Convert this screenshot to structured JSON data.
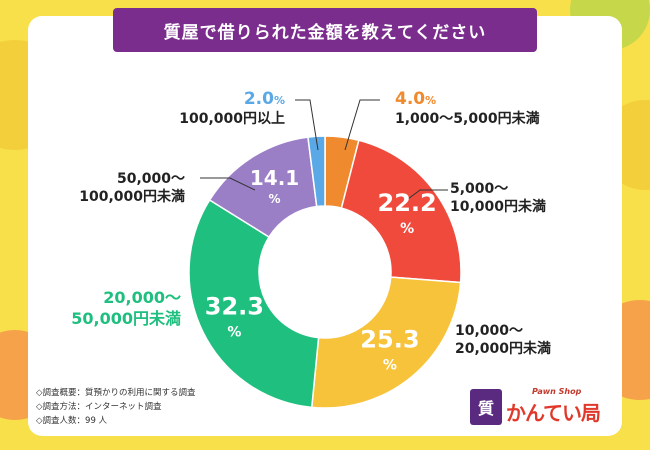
{
  "title": "質屋で借りられた金額を教えてください",
  "chart_data": {
    "type": "pie",
    "variant": "donut",
    "title": "質屋で借りられた金額を教えてください",
    "unit": "%",
    "slices": [
      {
        "label_lines": [
          "1,000〜5,000円未満"
        ],
        "value": 4.0,
        "value_text": "4.0",
        "color": "#f08a2e"
      },
      {
        "label_lines": [
          "5,000〜",
          "10,000円未満"
        ],
        "value": 22.2,
        "value_text": "22.2",
        "color": "#f04a3c"
      },
      {
        "label_lines": [
          "10,000〜",
          "20,000円未満"
        ],
        "value": 25.3,
        "value_text": "25.3",
        "color": "#f7c33b"
      },
      {
        "label_lines": [
          "20,000〜",
          "50,000円未満"
        ],
        "value": 32.3,
        "value_text": "32.3",
        "color": "#1fbf7f"
      },
      {
        "label_lines": [
          "50,000〜",
          "100,000円未満"
        ],
        "value": 14.1,
        "value_text": "14.1",
        "color": "#9b7fc6"
      },
      {
        "label_lines": [
          "100,000円以上"
        ],
        "value": 2.0,
        "value_text": "2.0",
        "color": "#5aa9e6"
      }
    ]
  },
  "notes": [
    "◇調査概要：質預かりの利用に関する調査",
    "◇調査方法：インターネット調査",
    "◇調査人数：99 人"
  ],
  "logo": {
    "mark": "質",
    "subtitle": "Pawn Shop",
    "name": "かんてい局"
  },
  "colors": {
    "title_bar": "#7a2d8c",
    "background": "#f8e04a"
  }
}
